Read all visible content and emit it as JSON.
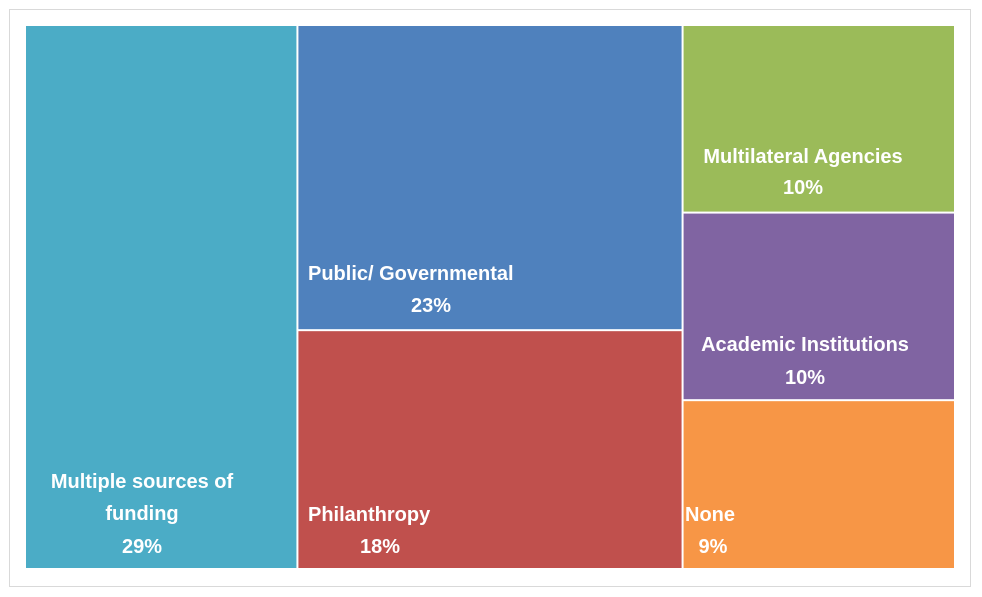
{
  "chart_data": {
    "type": "treemap",
    "title": "",
    "items": [
      {
        "label": "Multiple sources of funding",
        "value": 29,
        "value_label": "29%",
        "color": "#4BACC6"
      },
      {
        "label": "Public/ Governmental",
        "value": 23,
        "value_label": "23%",
        "color": "#4F81BD"
      },
      {
        "label": "Philanthropy",
        "value": 18,
        "value_label": "18%",
        "color": "#C0504D"
      },
      {
        "label": "Multilateral Agencies",
        "value": 10,
        "value_label": "10%",
        "color": "#9BBB59"
      },
      {
        "label": "Academic Institutions",
        "value": 10,
        "value_label": "10%",
        "color": "#8064A2"
      },
      {
        "label": "None",
        "value": 9,
        "value_label": "9%",
        "color": "#F79646"
      }
    ]
  }
}
